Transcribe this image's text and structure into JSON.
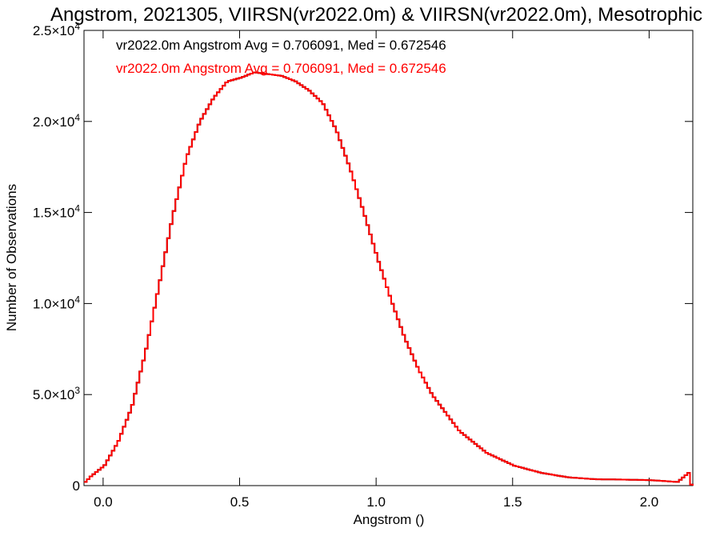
{
  "chart_data": {
    "type": "line",
    "title": "Angstrom, 2021305, VIIRSN(vr2022.0m) & VIIRSN(vr2022.0m), Mesotrophic",
    "xlabel": "Angstrom ()",
    "ylabel": "Number of Observations",
    "xlim": [
      -0.07,
      2.16
    ],
    "ylim": [
      0,
      25000
    ],
    "x_ticks": [
      {
        "value": 0.0,
        "label": "0.0"
      },
      {
        "value": 0.5,
        "label": "0.5"
      },
      {
        "value": 1.0,
        "label": "1.0"
      },
      {
        "value": 1.5,
        "label": "1.5"
      },
      {
        "value": 2.0,
        "label": "2.0"
      }
    ],
    "y_ticks": [
      {
        "value": 0,
        "label": "0",
        "mant": "0",
        "exp": ""
      },
      {
        "value": 5000,
        "label": "5.0×10³",
        "mant": "5.0×10",
        "exp": "3"
      },
      {
        "value": 10000,
        "label": "1.0×10⁴",
        "mant": "1.0×10",
        "exp": "4"
      },
      {
        "value": 15000,
        "label": "1.5×10⁴",
        "mant": "1.5×10",
        "exp": "4"
      },
      {
        "value": 20000,
        "label": "2.0×10⁴",
        "mant": "2.0×10",
        "exp": "4"
      },
      {
        "value": 25000,
        "label": "2.5×10⁴",
        "mant": "2.5×10",
        "exp": "4"
      }
    ],
    "grid": false,
    "legend_position": "top-left",
    "series": [
      {
        "name": "vr2022.0m Angstrom Avg = 0.706091, Med = 0.672546",
        "color": "#000000",
        "x": [
          -0.07,
          -0.05,
          0.0,
          0.05,
          0.1,
          0.15,
          0.2,
          0.25,
          0.3,
          0.35,
          0.4,
          0.45,
          0.5,
          0.55,
          0.6,
          0.65,
          0.7,
          0.75,
          0.8,
          0.85,
          0.9,
          0.95,
          1.0,
          1.05,
          1.1,
          1.15,
          1.2,
          1.3,
          1.4,
          1.5,
          1.6,
          1.7,
          1.8,
          1.9,
          2.0,
          2.1,
          2.14,
          2.15,
          2.16
        ],
        "y": [
          200,
          500,
          1100,
          2400,
          4300,
          7300,
          11000,
          14800,
          18000,
          20000,
          21300,
          22200,
          22400,
          22700,
          22600,
          22500,
          22200,
          21700,
          21000,
          19500,
          17400,
          15000,
          12500,
          10200,
          8100,
          6400,
          5000,
          3000,
          1800,
          1100,
          700,
          450,
          350,
          330,
          300,
          200,
          700,
          50,
          0
        ]
      },
      {
        "name": "vr2022.0m Angstrom Avg = 0.706091, Med = 0.672546",
        "color": "#ff0000",
        "x": [
          -0.07,
          -0.05,
          0.0,
          0.05,
          0.1,
          0.15,
          0.2,
          0.25,
          0.3,
          0.35,
          0.4,
          0.45,
          0.5,
          0.55,
          0.6,
          0.65,
          0.7,
          0.75,
          0.8,
          0.85,
          0.9,
          0.95,
          1.0,
          1.05,
          1.1,
          1.15,
          1.2,
          1.3,
          1.4,
          1.5,
          1.6,
          1.7,
          1.8,
          1.9,
          2.0,
          2.1,
          2.14,
          2.15,
          2.16
        ],
        "y": [
          200,
          500,
          1100,
          2400,
          4300,
          7300,
          11000,
          14800,
          18000,
          20000,
          21300,
          22200,
          22400,
          22700,
          22600,
          22500,
          22200,
          21700,
          21000,
          19500,
          17400,
          15000,
          12500,
          10200,
          8100,
          6400,
          5000,
          3000,
          1800,
          1100,
          700,
          450,
          350,
          330,
          300,
          200,
          700,
          50,
          0
        ]
      }
    ]
  }
}
